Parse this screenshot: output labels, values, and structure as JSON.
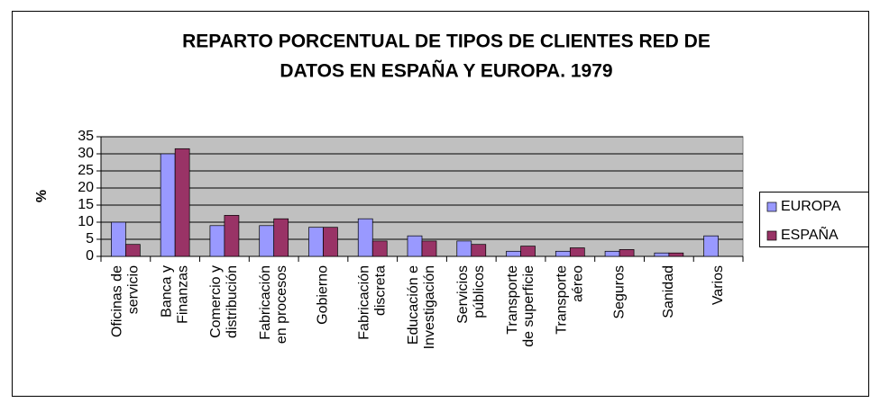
{
  "chart_data": {
    "type": "bar",
    "title": [
      "REPARTO PORCENTUAL DE TIPOS DE CLIENTES RED DE",
      "DATOS EN ESPAÑA Y EUROPA. 1979"
    ],
    "y_label": "%",
    "categories": [
      [
        "Oficinas de",
        "servicio"
      ],
      [
        "Banca y",
        "Finanzas"
      ],
      [
        "Comercio y",
        "distribución"
      ],
      [
        "Fabricación",
        "en procesos"
      ],
      [
        "Gobierno"
      ],
      [
        "Fabricación",
        "discreta"
      ],
      [
        "Educación e",
        "Investigación"
      ],
      [
        "Servicios",
        "públicos"
      ],
      [
        "Transporte",
        "de superficie"
      ],
      [
        "Transporte",
        "aéreo"
      ],
      [
        "Seguros"
      ],
      [
        "Sanidad"
      ],
      [
        "Varios"
      ]
    ],
    "series": [
      {
        "name": "EUROPA",
        "color": "#9999ff",
        "values": [
          10,
          30,
          9,
          9,
          8.5,
          11,
          6,
          4.5,
          1.5,
          1.5,
          1.5,
          1,
          6
        ]
      },
      {
        "name": "ESPAÑA",
        "color": "#993366",
        "values": [
          3.5,
          31.5,
          12,
          11,
          8.5,
          4.5,
          4.5,
          3.5,
          3,
          2.5,
          2,
          1,
          null
        ]
      }
    ],
    "ylim": [
      0,
      35
    ],
    "yticks": [
      0,
      5,
      10,
      15,
      20,
      25,
      30,
      35
    ],
    "grid": true,
    "legend": "right"
  }
}
